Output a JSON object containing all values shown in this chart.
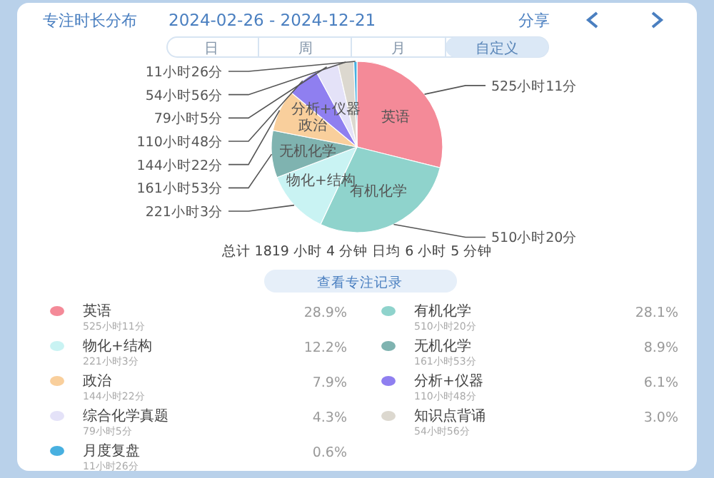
{
  "chart_data": {
    "type": "pie",
    "title": "专注时长分布",
    "subtitle": "2024-02-26 - 2024-12-21",
    "categories": [
      "英语",
      "有机化学",
      "物化+结构",
      "无机化学",
      "政治",
      "分析+仪器",
      "综合化学真题",
      "知识点背诵",
      "月度复盘"
    ],
    "values": [
      28.9,
      28.1,
      12.2,
      8.9,
      7.9,
      6.1,
      4.3,
      3.0,
      0.6
    ],
    "colors": [
      "#f48a98",
      "#8fd3cc",
      "#c9f3f3",
      "#7fb3b0",
      "#f9cf9c",
      "#8f7ff0",
      "#e4e2f8",
      "#dcd8cf",
      "#48b0e0"
    ],
    "value_labels": [
      "28.9%",
      "28.1%",
      "12.2%",
      "8.9%",
      "7.9%",
      "6.1%",
      "4.3%",
      "3.0%",
      "0.6%"
    ],
    "legend": "bottom",
    "annotations": [
      "分享",
      "日",
      "周",
      "月",
      "自定义",
      "总计 1819 小时 4 分钟 日均 6 小时 5 分钟",
      "查看专注记录",
      {
        "text": "525小时11分",
        "x": "英语"
      },
      {
        "text": "510小时20分",
        "x": "有机化学"
      },
      {
        "text": "221小时3分",
        "x": "物化+结构"
      },
      {
        "text": "161小时53分",
        "x": "无机化学"
      },
      {
        "text": "144小时22分",
        "x": "政治"
      },
      {
        "text": "110小时48分",
        "x": "分析+仪器"
      },
      {
        "text": "79小时5分",
        "x": "综合化学真题"
      },
      {
        "text": "54小时56分",
        "x": "知识点背诵"
      },
      {
        "text": "11小时26分",
        "x": "月度复盘"
      }
    ]
  }
}
